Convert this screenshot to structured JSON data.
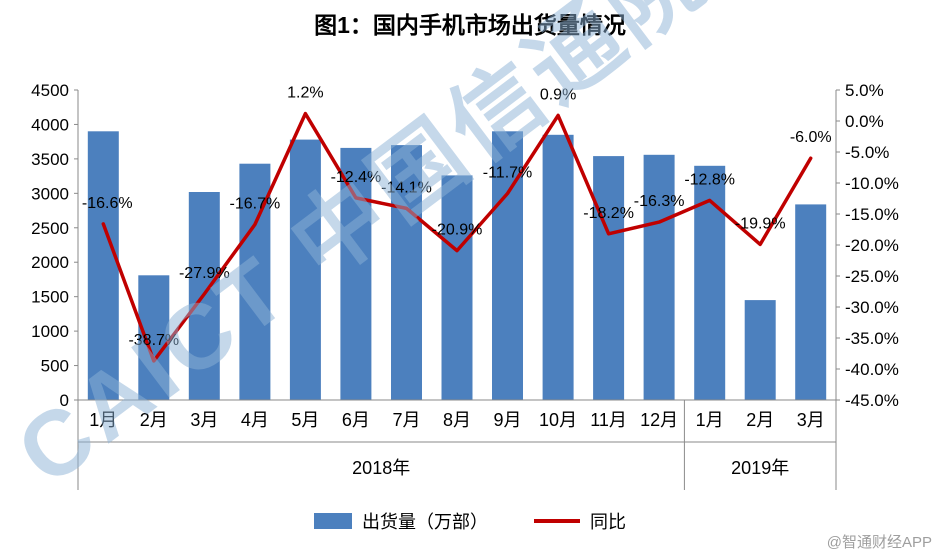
{
  "title": "图1：国内手机市场出货量情况",
  "watermark": "CAICT 中国信通院",
  "credit": "@智通财经APP",
  "legend": {
    "bars": "出货量（万部）",
    "line": "同比"
  },
  "colors": {
    "bar": "#4C80BE",
    "line": "#C00000",
    "watermark": "rgba(139,178,214,0.5)",
    "axis": "#8A8A8A",
    "text": "#000000",
    "credit": "#9E9E9E"
  },
  "chart_data": {
    "type": "bar+line combo",
    "title": "图1：国内手机市场出货量情况",
    "categories": [
      "1月",
      "2月",
      "3月",
      "4月",
      "5月",
      "6月",
      "7月",
      "8月",
      "9月",
      "10月",
      "11月",
      "12月",
      "1月",
      "2月",
      "3月"
    ],
    "year_groups": [
      {
        "label": "2018年",
        "span": 12
      },
      {
        "label": "2019年",
        "span": 3
      }
    ],
    "series": [
      {
        "name": "出货量（万部）",
        "type": "bar",
        "axis": "left",
        "values": [
          3900,
          1810,
          3020,
          3430,
          3780,
          3660,
          3700,
          3260,
          3900,
          3850,
          3540,
          3560,
          3400,
          1450,
          2840
        ]
      },
      {
        "name": "同比",
        "type": "line",
        "axis": "right",
        "values": [
          -16.6,
          -38.7,
          -27.9,
          -16.7,
          1.2,
          -12.4,
          -14.1,
          -20.9,
          -11.7,
          0.9,
          -18.2,
          -16.3,
          -12.8,
          -19.9,
          -6.0
        ],
        "point_labels": [
          "-16.6%",
          "-38.7%",
          "-27.9%",
          "-16.7%",
          "1.2%",
          "-12.4%",
          "-14.1%",
          "-20.9%",
          "-11.7%",
          "0.9%",
          "-18.2%",
          "-16.3%",
          "-12.8%",
          "-19.9%",
          "-6.0%"
        ]
      }
    ],
    "left_axis": {
      "min": 0,
      "max": 4500,
      "step": 500,
      "tick_labels": [
        "4500",
        "4000",
        "3500",
        "3000",
        "2500",
        "2000",
        "1500",
        "1000",
        "500",
        "0"
      ]
    },
    "right_axis": {
      "min": -45,
      "max": 5,
      "step": 5,
      "tick_labels": [
        "5.0%",
        "0.0%",
        "-5.0%",
        "-10.0%",
        "-15.0%",
        "-20.0%",
        "-25.0%",
        "-30.0%",
        "-35.0%",
        "-40.0%",
        "-45.0%"
      ]
    },
    "grid": "off",
    "legend_position": "bottom"
  }
}
